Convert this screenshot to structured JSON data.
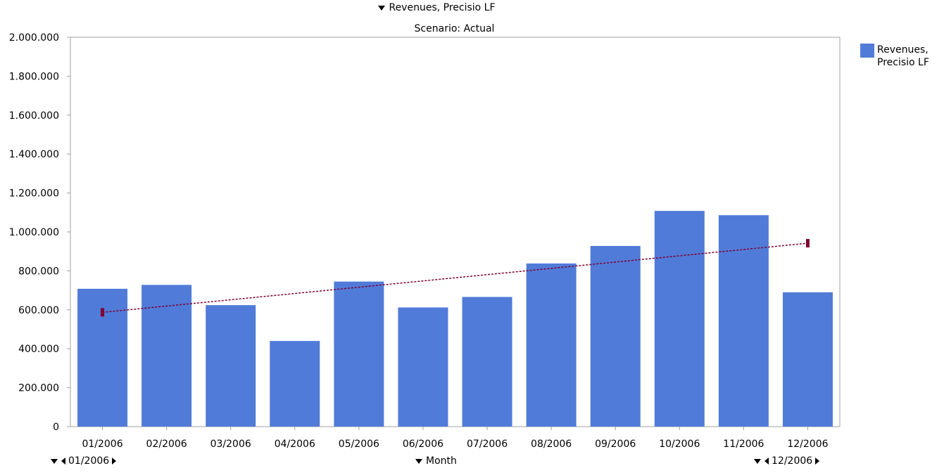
{
  "header": {
    "title": "Revenues, Precisio LF",
    "subtitle": "Scenario: Actual"
  },
  "legend": {
    "label": "Revenues, Precisio LF",
    "position": "right"
  },
  "x_controls": {
    "start_label": "01/2006",
    "dimension_label": "Month",
    "end_label": "12/2006"
  },
  "colors": {
    "bar": "#517BD8",
    "trend": "#800033",
    "axis": "#A0A0A0"
  },
  "chart_data": {
    "type": "bar",
    "title": "Revenues, Precisio LF",
    "subtitle": "Scenario: Actual",
    "categories": [
      "01/2006",
      "02/2006",
      "03/2006",
      "04/2006",
      "05/2006",
      "06/2006",
      "07/2006",
      "08/2006",
      "09/2006",
      "10/2006",
      "11/2006",
      "12/2006"
    ],
    "series": [
      {
        "name": "Revenues, Precisio LF",
        "values": [
          708000,
          728000,
          624000,
          440000,
          745000,
          612000,
          666000,
          838000,
          928000,
          1108000,
          1086000,
          690000
        ]
      }
    ],
    "trendline": {
      "start": 587000,
      "end": 942000
    },
    "ylim": [
      0,
      2000000
    ],
    "yticks": [
      0,
      200000,
      400000,
      600000,
      800000,
      1000000,
      1200000,
      1400000,
      1600000,
      1800000,
      2000000
    ],
    "ytick_labels": [
      "0",
      "200.000",
      "400.000",
      "600.000",
      "800.000",
      "1.000.000",
      "1.200.000",
      "1.400.000",
      "1.600.000",
      "1.800.000",
      "2.000.000"
    ],
    "xlabel": "Month",
    "ylabel": "",
    "grid": false,
    "legend": "right"
  }
}
